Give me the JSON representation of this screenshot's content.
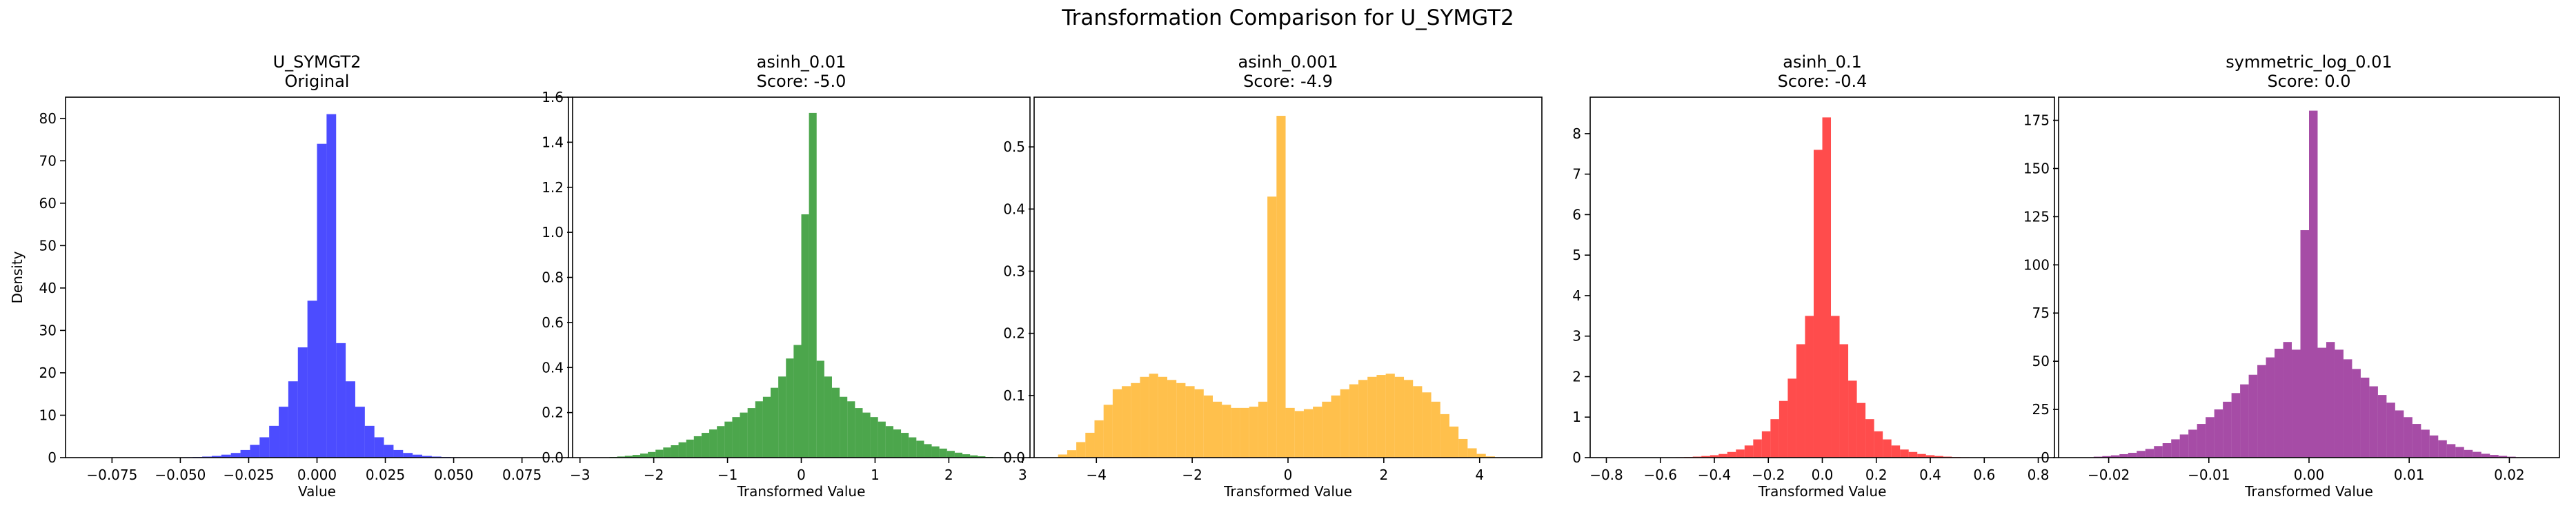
{
  "figure": {
    "title": "Transformation Comparison for U_SYMGT2"
  },
  "chart_data": [
    {
      "type": "bar",
      "title_line1": "U_SYMGT2",
      "title_line2": "Original",
      "xlabel": "Value",
      "ylabel": "Density",
      "color": "#0000ff",
      "xlim": [
        -0.092,
        0.092
      ],
      "ylim": [
        0,
        85
      ],
      "xticks": [
        -0.075,
        -0.05,
        -0.025,
        0,
        0.025,
        0.05,
        0.075
      ],
      "xtick_labels": [
        "−0.075",
        "−0.050",
        "−0.025",
        "0.000",
        "0.025",
        "0.050",
        "0.075"
      ],
      "yticks": [
        0,
        10,
        20,
        30,
        40,
        50,
        60,
        70,
        80
      ],
      "ytick_labels": [
        "0",
        "10",
        "20",
        "30",
        "40",
        "50",
        "60",
        "70",
        "80"
      ],
      "bin_start": -0.0875,
      "bin_width": 0.0035,
      "values": [
        0,
        0,
        0,
        0,
        0,
        0,
        0,
        0,
        0,
        0,
        0.05,
        0.1,
        0.15,
        0.25,
        0.4,
        0.7,
        1.1,
        1.8,
        3.0,
        4.8,
        7.5,
        12,
        18,
        26,
        37,
        74,
        81,
        27,
        18,
        12,
        7.5,
        4.8,
        3.0,
        1.8,
        1.1,
        0.7,
        0.4,
        0.25,
        0.15,
        0.1,
        0.05,
        0,
        0,
        0,
        0,
        0,
        0,
        0,
        0,
        0
      ]
    },
    {
      "type": "bar",
      "title_line1": "asinh_0.01",
      "title_line2": "Score: -5.0",
      "xlabel": "Transformed Value",
      "ylabel": "",
      "color": "#008000",
      "xlim": [
        -3.1,
        3.1
      ],
      "ylim": [
        0,
        1.6
      ],
      "xticks": [
        -3,
        -2,
        -1,
        0,
        1,
        2,
        3
      ],
      "xtick_labels": [
        "−3",
        "−2",
        "−1",
        "0",
        "1",
        "2",
        "3"
      ],
      "yticks": [
        0,
        0.2,
        0.4,
        0.6,
        0.8,
        1.0,
        1.2,
        1.4,
        1.6
      ],
      "ytick_labels": [
        "0.0",
        "0.2",
        "0.4",
        "0.6",
        "0.8",
        "1.0",
        "1.2",
        "1.4",
        "1.6"
      ],
      "bin_start": -2.6,
      "bin_width": 0.104,
      "values": [
        0.003,
        0.005,
        0.008,
        0.012,
        0.018,
        0.025,
        0.035,
        0.045,
        0.055,
        0.068,
        0.08,
        0.095,
        0.11,
        0.125,
        0.14,
        0.16,
        0.18,
        0.2,
        0.22,
        0.25,
        0.27,
        0.31,
        0.36,
        0.44,
        0.5,
        1.08,
        1.53,
        0.43,
        0.36,
        0.31,
        0.27,
        0.25,
        0.22,
        0.2,
        0.18,
        0.16,
        0.14,
        0.125,
        0.11,
        0.09,
        0.075,
        0.06,
        0.05,
        0.04,
        0.03,
        0.022,
        0.015,
        0.01,
        0.006,
        0.003
      ]
    },
    {
      "type": "bar",
      "title_line1": "asinh_0.001",
      "title_line2": "Score: -4.9",
      "xlabel": "Transformed Value",
      "ylabel": "",
      "color": "#ffa500",
      "xlim": [
        -5.3,
        5.3
      ],
      "ylim": [
        0,
        0.58
      ],
      "xticks": [
        -4,
        -2,
        0,
        2,
        4
      ],
      "xtick_labels": [
        "−4",
        "−2",
        "0",
        "2",
        "4"
      ],
      "yticks": [
        0,
        0.1,
        0.2,
        0.3,
        0.4,
        0.5
      ],
      "ytick_labels": [
        "0.0",
        "0.1",
        "0.2",
        "0.3",
        "0.4",
        "0.5"
      ],
      "bin_start": -4.8,
      "bin_width": 0.19,
      "values": [
        0.005,
        0.012,
        0.025,
        0.04,
        0.06,
        0.085,
        0.11,
        0.115,
        0.12,
        0.13,
        0.135,
        0.13,
        0.125,
        0.12,
        0.115,
        0.11,
        0.1,
        0.09,
        0.085,
        0.08,
        0.08,
        0.082,
        0.09,
        0.42,
        0.55,
        0.08,
        0.075,
        0.078,
        0.082,
        0.09,
        0.1,
        0.11,
        0.118,
        0.125,
        0.13,
        0.133,
        0.135,
        0.13,
        0.125,
        0.115,
        0.105,
        0.09,
        0.07,
        0.05,
        0.03,
        0.015,
        0.006,
        0.002,
        0,
        0
      ]
    },
    {
      "type": "bar",
      "title_line1": "asinh_0.1",
      "title_line2": "Score: -0.4",
      "xlabel": "Transformed Value",
      "ylabel": "",
      "color": "#ff0000",
      "xlim": [
        -0.86,
        0.86
      ],
      "ylim": [
        0,
        8.9
      ],
      "xticks": [
        -0.8,
        -0.6,
        -0.4,
        -0.2,
        0,
        0.2,
        0.4,
        0.6,
        0.8
      ],
      "xtick_labels": [
        "−0.8",
        "−0.6",
        "−0.4",
        "−0.2",
        "0.0",
        "0.2",
        "0.4",
        "0.6",
        "0.8"
      ],
      "yticks": [
        0,
        1,
        2,
        3,
        4,
        5,
        6,
        7,
        8
      ],
      "ytick_labels": [
        "0",
        "1",
        "2",
        "3",
        "4",
        "5",
        "6",
        "7",
        "8"
      ],
      "bin_start": -0.8,
      "bin_width": 0.032,
      "values": [
        0,
        0,
        0,
        0,
        0,
        0,
        0,
        0.005,
        0.01,
        0.015,
        0.025,
        0.04,
        0.06,
        0.09,
        0.14,
        0.2,
        0.3,
        0.45,
        0.65,
        0.95,
        1.4,
        1.95,
        2.8,
        3.5,
        7.6,
        8.4,
        3.5,
        2.8,
        1.9,
        1.35,
        0.95,
        0.65,
        0.45,
        0.3,
        0.2,
        0.14,
        0.09,
        0.06,
        0.04,
        0.025,
        0.015,
        0.01,
        0.005,
        0,
        0,
        0,
        0,
        0,
        0,
        0
      ]
    },
    {
      "type": "bar",
      "title_line1": "symmetric_log_0.01",
      "title_line2": "Score: 0.0",
      "xlabel": "Transformed Value",
      "ylabel": "",
      "color": "#800080",
      "xlim": [
        -0.025,
        0.025
      ],
      "ylim": [
        0,
        187
      ],
      "xticks": [
        -0.02,
        -0.01,
        0,
        0.01,
        0.02
      ],
      "xtick_labels": [
        "−0.02",
        "−0.01",
        "0.00",
        "0.01",
        "0.02"
      ],
      "yticks": [
        0,
        25,
        50,
        75,
        100,
        125,
        150,
        175
      ],
      "ytick_labels": [
        "0",
        "25",
        "50",
        "75",
        "100",
        "125",
        "150",
        "175"
      ],
      "bin_start": -0.0215,
      "bin_width": 0.00086,
      "values": [
        0.5,
        0.8,
        1.2,
        1.8,
        2.5,
        3.5,
        4.5,
        6,
        7.5,
        9.5,
        12,
        14.5,
        17.5,
        21,
        25,
        29,
        33.5,
        38,
        43,
        48,
        52,
        56.5,
        60,
        56,
        118,
        180,
        57,
        60,
        56,
        51,
        46,
        41.5,
        37,
        32.5,
        28.5,
        24.5,
        21,
        17.5,
        14.5,
        11.5,
        9,
        7,
        5.5,
        4,
        3,
        2,
        1.4,
        0.9,
        0.5,
        0.2
      ]
    }
  ]
}
